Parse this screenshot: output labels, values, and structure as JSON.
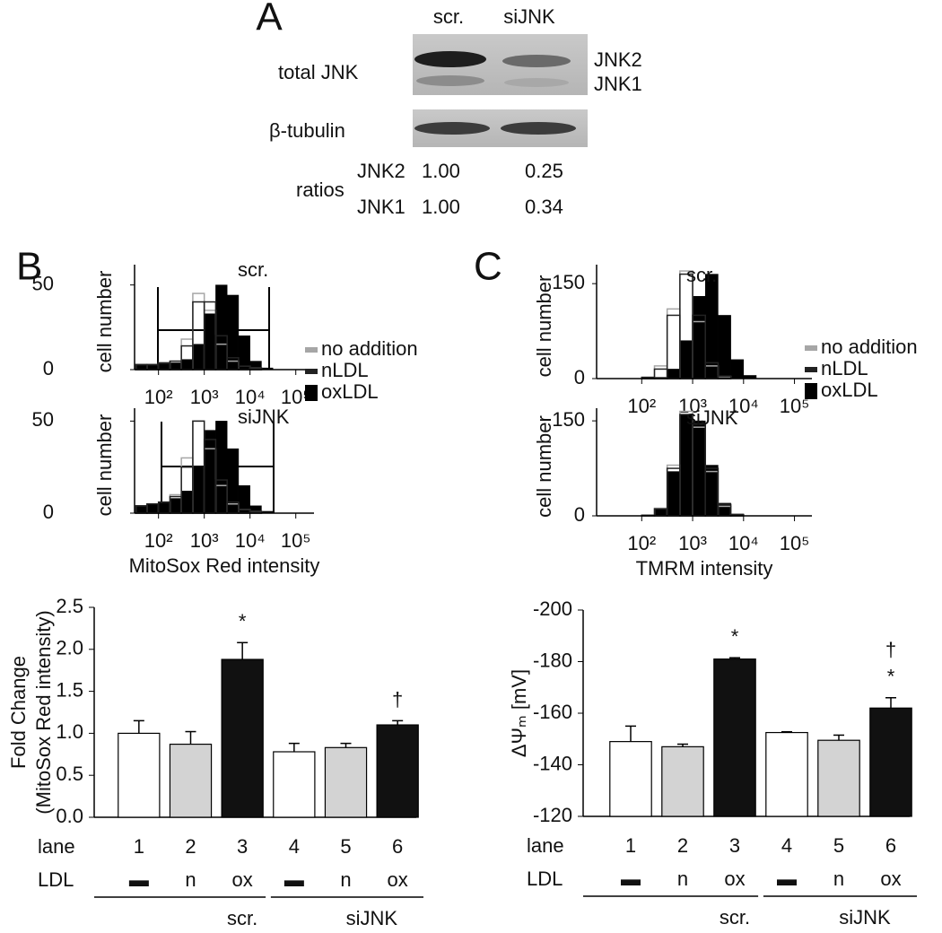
{
  "panels": [
    "A",
    "B",
    "C"
  ],
  "blot": {
    "lanes": [
      "scr.",
      "siJNK"
    ],
    "rows": [
      "total JNK",
      "β-tubulin"
    ],
    "bands": [
      "JNK2",
      "JNK1"
    ],
    "ratios": {
      "label": "ratios",
      "rows": [
        {
          "name": "JNK2",
          "values": [
            "1.00",
            "0.25"
          ]
        },
        {
          "name": "JNK1",
          "values": [
            "1.00",
            "0.34"
          ]
        }
      ]
    }
  },
  "chart_data": [
    {
      "type": "histogram",
      "subtitle": "scr.",
      "ylabel": "cell number",
      "log_x": true,
      "bins": [
        32,
        56,
        100,
        178,
        316,
        562,
        1000,
        1778,
        3162,
        5623,
        10000,
        17783,
        31623
      ],
      "series": [
        {
          "name": "no addition",
          "color": "#a6a6a6",
          "values": [
            3,
            3,
            4,
            5,
            18,
            45,
            35,
            15,
            5,
            2,
            1,
            0
          ]
        },
        {
          "name": "nLDL",
          "color": "#222222",
          "values": [
            3,
            3,
            4,
            5,
            14,
            40,
            40,
            20,
            7,
            2,
            1,
            0
          ]
        },
        {
          "name": "oxLDL",
          "color": "#000000",
          "values": [
            3,
            3,
            4,
            4,
            6,
            15,
            33,
            50,
            44,
            20,
            5,
            1
          ]
        }
      ],
      "xlim": [
        30,
        250000
      ],
      "xticks": [
        {
          "value": 100,
          "label": "10²"
        },
        {
          "value": 1000,
          "label": "10³"
        },
        {
          "value": 10000,
          "label": "10⁴"
        },
        {
          "value": 100000,
          "label": "10⁵"
        }
      ],
      "ylim": [
        0,
        62
      ],
      "yticks": [
        0,
        50
      ],
      "legend": "right"
    },
    {
      "type": "histogram",
      "subtitle": "siJNK",
      "ylabel": "cell number",
      "xlabel": "MitoSox Red intensity",
      "log_x": true,
      "bins": [
        32,
        56,
        100,
        178,
        316,
        562,
        1000,
        1778,
        3162,
        5623,
        10000,
        17783,
        31623
      ],
      "series": [
        {
          "color": "#a6a6a6",
          "values": [
            4,
            5,
            6,
            10,
            30,
            50,
            35,
            15,
            5,
            2,
            1,
            0
          ]
        },
        {
          "color": "#222222",
          "values": [
            4,
            5,
            6,
            9,
            25,
            50,
            40,
            18,
            6,
            2,
            1,
            0
          ]
        },
        {
          "color": "#000000",
          "values": [
            4,
            5,
            6,
            8,
            12,
            25,
            45,
            50,
            35,
            15,
            4,
            1
          ]
        }
      ],
      "xlim": [
        30,
        250000
      ],
      "xticks": [
        {
          "value": 100,
          "label": "10²"
        },
        {
          "value": 1000,
          "label": "10³"
        },
        {
          "value": 10000,
          "label": "10⁴"
        },
        {
          "value": 100000,
          "label": "10⁵"
        }
      ],
      "ylim": [
        0,
        57
      ],
      "yticks": [
        0,
        50
      ]
    },
    {
      "type": "bar",
      "ylabel": [
        "Fold Change",
        "(MitoSox Red intensity)"
      ],
      "categories": [
        "1",
        "2",
        "3",
        "4",
        "5",
        "6"
      ],
      "values": [
        1.0,
        0.87,
        1.88,
        0.78,
        0.83,
        1.1
      ],
      "errors": [
        0.15,
        0.15,
        0.2,
        0.1,
        0.05,
        0.05
      ],
      "colors": [
        "#ffffff",
        "#d3d3d3",
        "#111111",
        "#ffffff",
        "#d3d3d3",
        "#111111"
      ],
      "ylim": [
        0,
        2.5
      ],
      "yticks": [
        {
          "value": 0,
          "label": "0.0"
        },
        0.5,
        {
          "value": 1,
          "label": "1.0"
        },
        1.5,
        {
          "value": 2,
          "label": "2.0"
        },
        2.5
      ],
      "row_labels": [
        "lane",
        "LDL"
      ],
      "ldl": [
        "▬",
        "n",
        "ox",
        "▬",
        "n",
        "ox"
      ],
      "groups": [
        "scr.",
        "siJNK"
      ],
      "significance": [
        null,
        null,
        [
          "*"
        ],
        null,
        null,
        [
          "†"
        ]
      ]
    },
    {
      "type": "histogram",
      "subtitle": "scr.",
      "ylabel": "cell number",
      "log_x": true,
      "bins": [
        32,
        56,
        100,
        178,
        316,
        562,
        1000,
        1778,
        3162,
        5623,
        10000,
        17783,
        31623
      ],
      "series": [
        {
          "name": "no addition",
          "color": "#a6a6a6",
          "values": [
            0,
            0,
            2,
            20,
            110,
            170,
            90,
            20,
            3,
            0,
            0,
            0
          ]
        },
        {
          "name": "nLDL",
          "color": "#222222",
          "values": [
            0,
            0,
            2,
            15,
            100,
            165,
            100,
            25,
            4,
            0,
            0,
            0
          ]
        },
        {
          "name": "oxLDL",
          "color": "#000000",
          "values": [
            0,
            0,
            0,
            2,
            15,
            60,
            130,
            165,
            100,
            30,
            5,
            0
          ]
        }
      ],
      "xlim": [
        13,
        220000
      ],
      "xticks": [
        {
          "value": 100,
          "label": "10²"
        },
        {
          "value": 1000,
          "label": "10³"
        },
        {
          "value": 10000,
          "label": "10⁴"
        },
        {
          "value": 100000,
          "label": "10⁵"
        }
      ],
      "ylim": [
        0,
        180
      ],
      "yticks": [
        0,
        150
      ],
      "legend": "right"
    },
    {
      "type": "histogram",
      "subtitle": "siJNK",
      "ylabel": "cell number",
      "xlabel": "TMRM intensity",
      "log_x": true,
      "bins": [
        32,
        56,
        100,
        178,
        316,
        562,
        1000,
        1778,
        3162,
        5623,
        10000,
        17783,
        31623
      ],
      "series": [
        {
          "color": "#a6a6a6",
          "values": [
            0,
            0,
            1,
            12,
            80,
            165,
            140,
            70,
            15,
            2,
            0,
            0
          ]
        },
        {
          "color": "#222222",
          "values": [
            0,
            0,
            1,
            11,
            75,
            160,
            145,
            75,
            18,
            2,
            0,
            0
          ]
        },
        {
          "color": "#000000",
          "values": [
            0,
            0,
            1,
            10,
            70,
            160,
            150,
            80,
            20,
            3,
            0,
            0
          ]
        }
      ],
      "xlim": [
        13,
        220000
      ],
      "xticks": [
        {
          "value": 100,
          "label": "10²"
        },
        {
          "value": 1000,
          "label": "10³"
        },
        {
          "value": 10000,
          "label": "10⁴"
        },
        {
          "value": 100000,
          "label": "10⁵"
        }
      ],
      "ylim": [
        0,
        170
      ],
      "yticks": [
        0,
        150
      ]
    },
    {
      "type": "bar",
      "ylabel": [
        "ΔΨₘ [mV]"
      ],
      "categories": [
        "1",
        "2",
        "3",
        "4",
        "5",
        "6"
      ],
      "values": [
        -149,
        -147,
        -181,
        -152.5,
        -149.5,
        -162
      ],
      "errors": [
        6,
        1,
        0.5,
        0.3,
        2,
        4
      ],
      "colors": [
        "#ffffff",
        "#d3d3d3",
        "#111111",
        "#ffffff",
        "#d3d3d3",
        "#111111"
      ],
      "ylim": [
        -120,
        -200
      ],
      "yticks": [
        -120,
        -140,
        -160,
        -180,
        -200
      ],
      "row_labels": [
        "lane",
        "LDL"
      ],
      "ldl": [
        "▬",
        "n",
        "ox",
        "▬",
        "n",
        "ox"
      ],
      "groups": [
        "scr.",
        "siJNK"
      ],
      "significance": [
        null,
        null,
        [
          "*"
        ],
        null,
        null,
        [
          "†",
          "*"
        ]
      ]
    }
  ]
}
